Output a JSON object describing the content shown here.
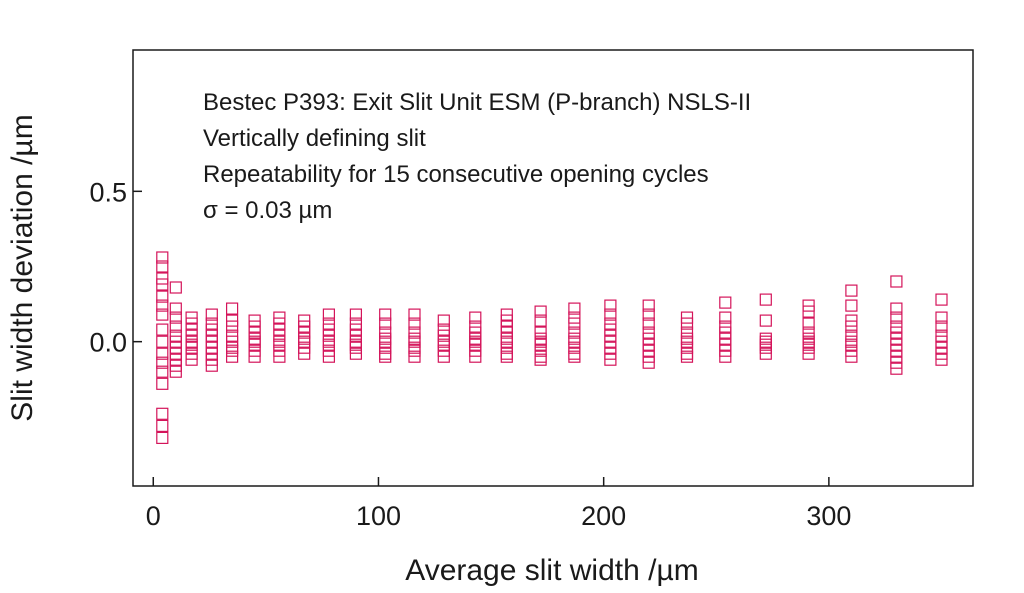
{
  "chart_data": {
    "type": "scatter",
    "xlabel": "Average slit width /µm",
    "ylabel": "Slit width deviation /µm",
    "xlim": [
      -9,
      364
    ],
    "ylim": [
      -0.48,
      0.97
    ],
    "xticks": [
      0,
      100,
      200,
      300
    ],
    "xtick_labels": [
      "0",
      "100",
      "200",
      "300"
    ],
    "yticks": [
      0.0,
      0.5
    ],
    "ytick_labels": [
      "0.0",
      "0.5"
    ],
    "grid": false,
    "legend": "none",
    "marker": "open-square",
    "marker_color": "#d4145a",
    "annotations": [
      "Bestec P393: Exit Slit Unit ESM (P-branch)  NSLS-II",
      "Vertically defining slit",
      "Repeatability for 15 consecutive opening cycles",
      "σ = 0.03 µm"
    ],
    "groups": [
      {
        "x": 4,
        "y": [
          0.28,
          0.25,
          0.21,
          0.19,
          0.15,
          0.12,
          0.09,
          0.04,
          0.0,
          -0.04,
          -0.07,
          -0.1,
          -0.14,
          -0.24,
          -0.28,
          -0.32
        ]
      },
      {
        "x": 10,
        "y": [
          0.18,
          0.11,
          0.08,
          0.05,
          0.02,
          0.0,
          -0.02,
          -0.04,
          -0.06,
          -0.08,
          -0.1
        ]
      },
      {
        "x": 17,
        "y": [
          0.08,
          0.06,
          0.04,
          0.02,
          0.0,
          -0.01,
          -0.02,
          -0.04,
          -0.06
        ]
      },
      {
        "x": 26,
        "y": [
          0.09,
          0.06,
          0.04,
          0.02,
          0.0,
          -0.02,
          -0.04,
          -0.06,
          -0.08
        ]
      },
      {
        "x": 35,
        "y": [
          0.11,
          0.07,
          0.05,
          0.02,
          0.0,
          -0.02,
          -0.03,
          -0.05
        ]
      },
      {
        "x": 45,
        "y": [
          0.07,
          0.05,
          0.03,
          0.01,
          0.0,
          -0.01,
          -0.03,
          -0.05
        ]
      },
      {
        "x": 56,
        "y": [
          0.08,
          0.06,
          0.04,
          0.02,
          0.0,
          -0.01,
          -0.03,
          -0.05
        ]
      },
      {
        "x": 67,
        "y": [
          0.07,
          0.05,
          0.03,
          0.01,
          0.0,
          -0.02,
          -0.04
        ]
      },
      {
        "x": 78,
        "y": [
          0.09,
          0.06,
          0.04,
          0.02,
          0.0,
          -0.01,
          -0.03,
          -0.05
        ]
      },
      {
        "x": 90,
        "y": [
          0.09,
          0.06,
          0.04,
          0.02,
          0.0,
          -0.01,
          -0.02,
          -0.04
        ]
      },
      {
        "x": 103,
        "y": [
          0.09,
          0.06,
          0.03,
          0.01,
          0.0,
          -0.02,
          -0.04,
          -0.05
        ]
      },
      {
        "x": 116,
        "y": [
          0.09,
          0.06,
          0.03,
          0.01,
          0.0,
          -0.02,
          -0.03,
          -0.05
        ]
      },
      {
        "x": 129,
        "y": [
          0.07,
          0.04,
          0.02,
          0.0,
          -0.01,
          -0.03,
          -0.05
        ]
      },
      {
        "x": 143,
        "y": [
          0.08,
          0.05,
          0.03,
          0.01,
          0.0,
          -0.01,
          -0.03,
          -0.05
        ]
      },
      {
        "x": 157,
        "y": [
          0.09,
          0.07,
          0.05,
          0.03,
          0.01,
          0.0,
          -0.02,
          -0.04,
          -0.05
        ]
      },
      {
        "x": 172,
        "y": [
          0.1,
          0.07,
          0.03,
          0.01,
          0.0,
          -0.01,
          -0.03,
          -0.05,
          -0.06
        ]
      },
      {
        "x": 187,
        "y": [
          0.11,
          0.08,
          0.06,
          0.03,
          0.01,
          0.0,
          -0.02,
          -0.04,
          -0.05
        ]
      },
      {
        "x": 203,
        "y": [
          0.12,
          0.09,
          0.06,
          0.04,
          0.02,
          0.0,
          -0.02,
          -0.04,
          -0.06
        ]
      },
      {
        "x": 220,
        "y": [
          0.12,
          0.09,
          0.06,
          0.03,
          0.01,
          -0.01,
          -0.03,
          -0.05,
          -0.07
        ]
      },
      {
        "x": 237,
        "y": [
          0.08,
          0.06,
          0.03,
          0.01,
          0.0,
          -0.02,
          -0.04,
          -0.05
        ]
      },
      {
        "x": 254,
        "y": [
          0.13,
          0.08,
          0.05,
          0.03,
          0.01,
          -0.01,
          -0.03,
          -0.05
        ]
      },
      {
        "x": 272,
        "y": [
          0.14,
          0.07,
          0.01,
          0.0,
          -0.01,
          -0.02,
          -0.04
        ]
      },
      {
        "x": 291,
        "y": [
          0.12,
          0.1,
          0.06,
          0.03,
          0.01,
          0.0,
          -0.01,
          -0.02,
          -0.04
        ]
      },
      {
        "x": 310,
        "y": [
          0.17,
          0.12,
          0.07,
          0.05,
          0.02,
          0.0,
          -0.01,
          -0.03,
          -0.05
        ]
      },
      {
        "x": 330,
        "y": [
          0.2,
          0.11,
          0.08,
          0.05,
          0.03,
          0.01,
          -0.01,
          -0.03,
          -0.05,
          -0.07,
          -0.09
        ]
      },
      {
        "x": 350,
        "y": [
          0.14,
          0.08,
          0.05,
          0.02,
          0.0,
          -0.02,
          -0.04,
          -0.06
        ]
      }
    ]
  }
}
